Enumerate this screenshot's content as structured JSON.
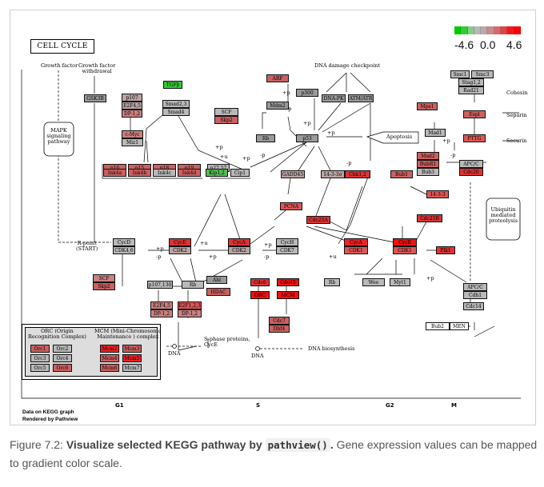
{
  "title": "CELL CYCLE",
  "legend": {
    "ticks": [
      "-4.6",
      "0.0",
      "4.6"
    ],
    "colors": [
      "#00cc00",
      "#33cc33",
      "#88cc88",
      "#b8b8b8",
      "#bfa7a7",
      "#c98a8a",
      "#d66a6a",
      "#e04444",
      "#ee1a1a",
      "#ff0000"
    ]
  },
  "labels": {
    "growth_factor": "Growth factor",
    "growth_factor_withdrawal": "Growth factor\nwithdrawal",
    "dna_damage": "DNA damage checkpoint",
    "mapk": "MAPK\nsignaling\npathway",
    "cohesin": "Cohesin",
    "separin": "Separin",
    "securin": "Securin",
    "ubiquitin": "Ubiquitin\nmediated\nproteolysis",
    "apoptosis": "Apoptosis",
    "rpoint": "R-point\n(START)",
    "s_phase": "S-phase proteins,\nCycE",
    "dna1": "DNA",
    "dna2": "DNA",
    "dna_biosynthesis": "DNA biosynthesis",
    "orc_title": "ORC (Origin\nRecognition Complex)",
    "mcm_title": "MCM (Mini-Chromosome\nMaintenance ) complex"
  },
  "phases": [
    "G1",
    "S",
    "G2",
    "M"
  ],
  "credits": [
    "Data on KEGG graph",
    "Rendered by Pathview"
  ],
  "genes": [
    {
      "label": "TGFβ",
      "color": "#33cc33"
    },
    {
      "label": "GSK3B",
      "color": "#9a9a9a"
    },
    {
      "label": "p107",
      "color": "#b9a4a4"
    },
    {
      "label": "E2F4,5",
      "color": "#b9a4a4"
    },
    {
      "label": "DP-1,2",
      "color": "#cc8080"
    },
    {
      "label": "Smad2,3",
      "color": "#b9b9b9"
    },
    {
      "label": "Smad4",
      "color": "#b9b9b9"
    },
    {
      "label": "c-Myc",
      "color": "#cc8080"
    },
    {
      "label": "Miz1",
      "color": "#b9b9b9"
    },
    {
      "label": "p16",
      "color": "#cc6060"
    },
    {
      "label": "p15",
      "color": "#cc6060"
    },
    {
      "label": "p18",
      "color": "#cc6060"
    },
    {
      "label": "p19",
      "color": "#cc6060"
    },
    {
      "label": "Ink4a",
      "color": "#cc6060"
    },
    {
      "label": "Ink4b",
      "color": "#cc6060"
    },
    {
      "label": "Ink4c",
      "color": "#b9b9b9"
    },
    {
      "label": "Ink4d",
      "color": "#cc6060"
    },
    {
      "label": "SCF",
      "color": "#b9b9b9"
    },
    {
      "label": "Skp2",
      "color": "#cc6060"
    },
    {
      "label": "p27,57",
      "color": "#b9b9b9"
    },
    {
      "label": "Kip1,2",
      "color": "#55bb55"
    },
    {
      "label": "Cip1",
      "color": "#b9b9b9"
    },
    {
      "label": "ARF",
      "color": "#cc6060"
    },
    {
      "label": "Mdm2",
      "color": "#9a9a9a"
    },
    {
      "label": "p300",
      "color": "#9a9a9a"
    },
    {
      "label": "DNA-PK",
      "color": "#9a9a9a"
    },
    {
      "label": "ATM/ATR",
      "color": "#9a9a9a"
    },
    {
      "label": "Rb",
      "color": "#9a9a9a"
    },
    {
      "label": "p53",
      "color": "#9a9a9a"
    },
    {
      "label": "Chk1,2",
      "color": "#dd3333"
    },
    {
      "label": "GADD45",
      "color": "#b9a4a4"
    },
    {
      "label": "14-3-3σ",
      "color": "#b9a4a4"
    },
    {
      "label": "PCNA",
      "color": "#dd5555"
    },
    {
      "label": "CycD",
      "color": "#b9b9b9"
    },
    {
      "label": "CDK4,6",
      "color": "#b9b9b9"
    },
    {
      "label": "CycE",
      "color": "#dd3333"
    },
    {
      "label": "CDK2",
      "color": "#b9a4a4"
    },
    {
      "label": "CycA",
      "color": "#dd3333"
    },
    {
      "label": "CDK2",
      "color": "#b9a4a4"
    },
    {
      "label": "CycH",
      "color": "#b9b9b9"
    },
    {
      "label": "CDK7",
      "color": "#b9b9b9"
    },
    {
      "label": "CycA",
      "color": "#ee2222"
    },
    {
      "label": "CDK1",
      "color": "#dd5555"
    },
    {
      "label": "CycB",
      "color": "#ee1111"
    },
    {
      "label": "CDK1",
      "color": "#dd5555"
    },
    {
      "label": "Plk1",
      "color": "#dd3333"
    },
    {
      "label": "Cdc25A",
      "color": "#dd3333"
    },
    {
      "label": "Cdc25B",
      "color": "#dd3333"
    },
    {
      "label": "14-3-3",
      "color": "#dd5555"
    },
    {
      "label": "SCF",
      "color": "#cc8080"
    },
    {
      "label": "Skp2",
      "color": "#cc6060"
    },
    {
      "label": "p107,130",
      "color": "#b9b9b9"
    },
    {
      "label": "Rb",
      "color": "#b9b9b9"
    },
    {
      "label": "Abl",
      "color": "#9a9a9a"
    },
    {
      "label": "HDAC",
      "color": "#cc6060"
    },
    {
      "label": "E2F4,5",
      "color": "#cc8080"
    },
    {
      "label": "DP-1,2",
      "color": "#cc8080"
    },
    {
      "label": "E2F1,2,3",
      "color": "#dd5555"
    },
    {
      "label": "DP-1,2",
      "color": "#cc8080"
    },
    {
      "label": "Cdc6",
      "color": "#dd3333"
    },
    {
      "label": "Cdc45",
      "color": "#ee1111"
    },
    {
      "label": "ORC",
      "color": "#ee1111"
    },
    {
      "label": "MCM",
      "color": "#ee1111"
    },
    {
      "label": "Cdc7",
      "color": "#cc6060"
    },
    {
      "label": "Dbf4",
      "color": "#cc6060"
    },
    {
      "label": "Bub2",
      "color": "#ffffff"
    },
    {
      "label": "MEN",
      "color": "#ffffff"
    },
    {
      "label": "Wee",
      "color": "#b9b9b9"
    },
    {
      "label": "Myt1",
      "color": "#b9b9b9"
    },
    {
      "label": "Rb",
      "color": "#b9b9b9"
    },
    {
      "label": "Mad1",
      "color": "#b9b9b9"
    },
    {
      "label": "Mad2",
      "color": "#cc6060"
    },
    {
      "label": "BubR1",
      "color": "#cc6060"
    },
    {
      "label": "Bub3",
      "color": "#b9b9b9"
    },
    {
      "label": "Bub1",
      "color": "#cc6060"
    },
    {
      "label": "Mps1",
      "color": "#cc6060"
    },
    {
      "label": "APC/C",
      "color": "#b9b9b9"
    },
    {
      "label": "Cdc20",
      "color": "#dd3333"
    },
    {
      "label": "APC/C",
      "color": "#b9b9b9"
    },
    {
      "label": "Cdh1",
      "color": "#b9b9b9"
    },
    {
      "label": "Cdc14",
      "color": "#b9b9b9"
    },
    {
      "label": "Smc1",
      "color": "#b9b9b9"
    },
    {
      "label": "Smc3",
      "color": "#b9b9b9"
    },
    {
      "label": "Stag1,2",
      "color": "#b9b9b9"
    },
    {
      "label": "Rad21",
      "color": "#b9b9b9"
    },
    {
      "label": "Espl",
      "color": "#cc6060"
    },
    {
      "label": "PTTG",
      "color": "#dd5555"
    },
    {
      "label": "Orc1",
      "color": "#cc6060"
    },
    {
      "label": "Orc2",
      "color": "#b9b9b9"
    },
    {
      "label": "Orc3",
      "color": "#b9b9b9"
    },
    {
      "label": "Orc4",
      "color": "#b9b9b9"
    },
    {
      "label": "Orc5",
      "color": "#b9b9b9"
    },
    {
      "label": "Orc6",
      "color": "#cc6060"
    },
    {
      "label": "Mcm2",
      "color": "#ee2222"
    },
    {
      "label": "Mcm3",
      "color": "#cc6060"
    },
    {
      "label": "Mcm4",
      "color": "#cc6060"
    },
    {
      "label": "Mcm5",
      "color": "#ee2222"
    },
    {
      "label": "Mcm6",
      "color": "#cc6060"
    },
    {
      "label": "Mcm7",
      "color": "#b9b9b9"
    }
  ],
  "edge_labels": [
    "+p",
    "-p",
    "+u",
    "+p",
    "-p",
    "+p",
    "-p",
    "+p",
    "-p",
    "+p",
    "+u",
    "+p",
    "-p",
    "+p",
    "+p",
    "+u",
    "+p",
    "-p",
    "+p"
  ],
  "caption": {
    "prefix": "Figure 7.2: ",
    "bold": "Visualize selected KEGG pathway by ",
    "code": "pathview()",
    "bold_end": ".",
    "rest": " Gene expression values can be mapped to gradient color scale."
  }
}
